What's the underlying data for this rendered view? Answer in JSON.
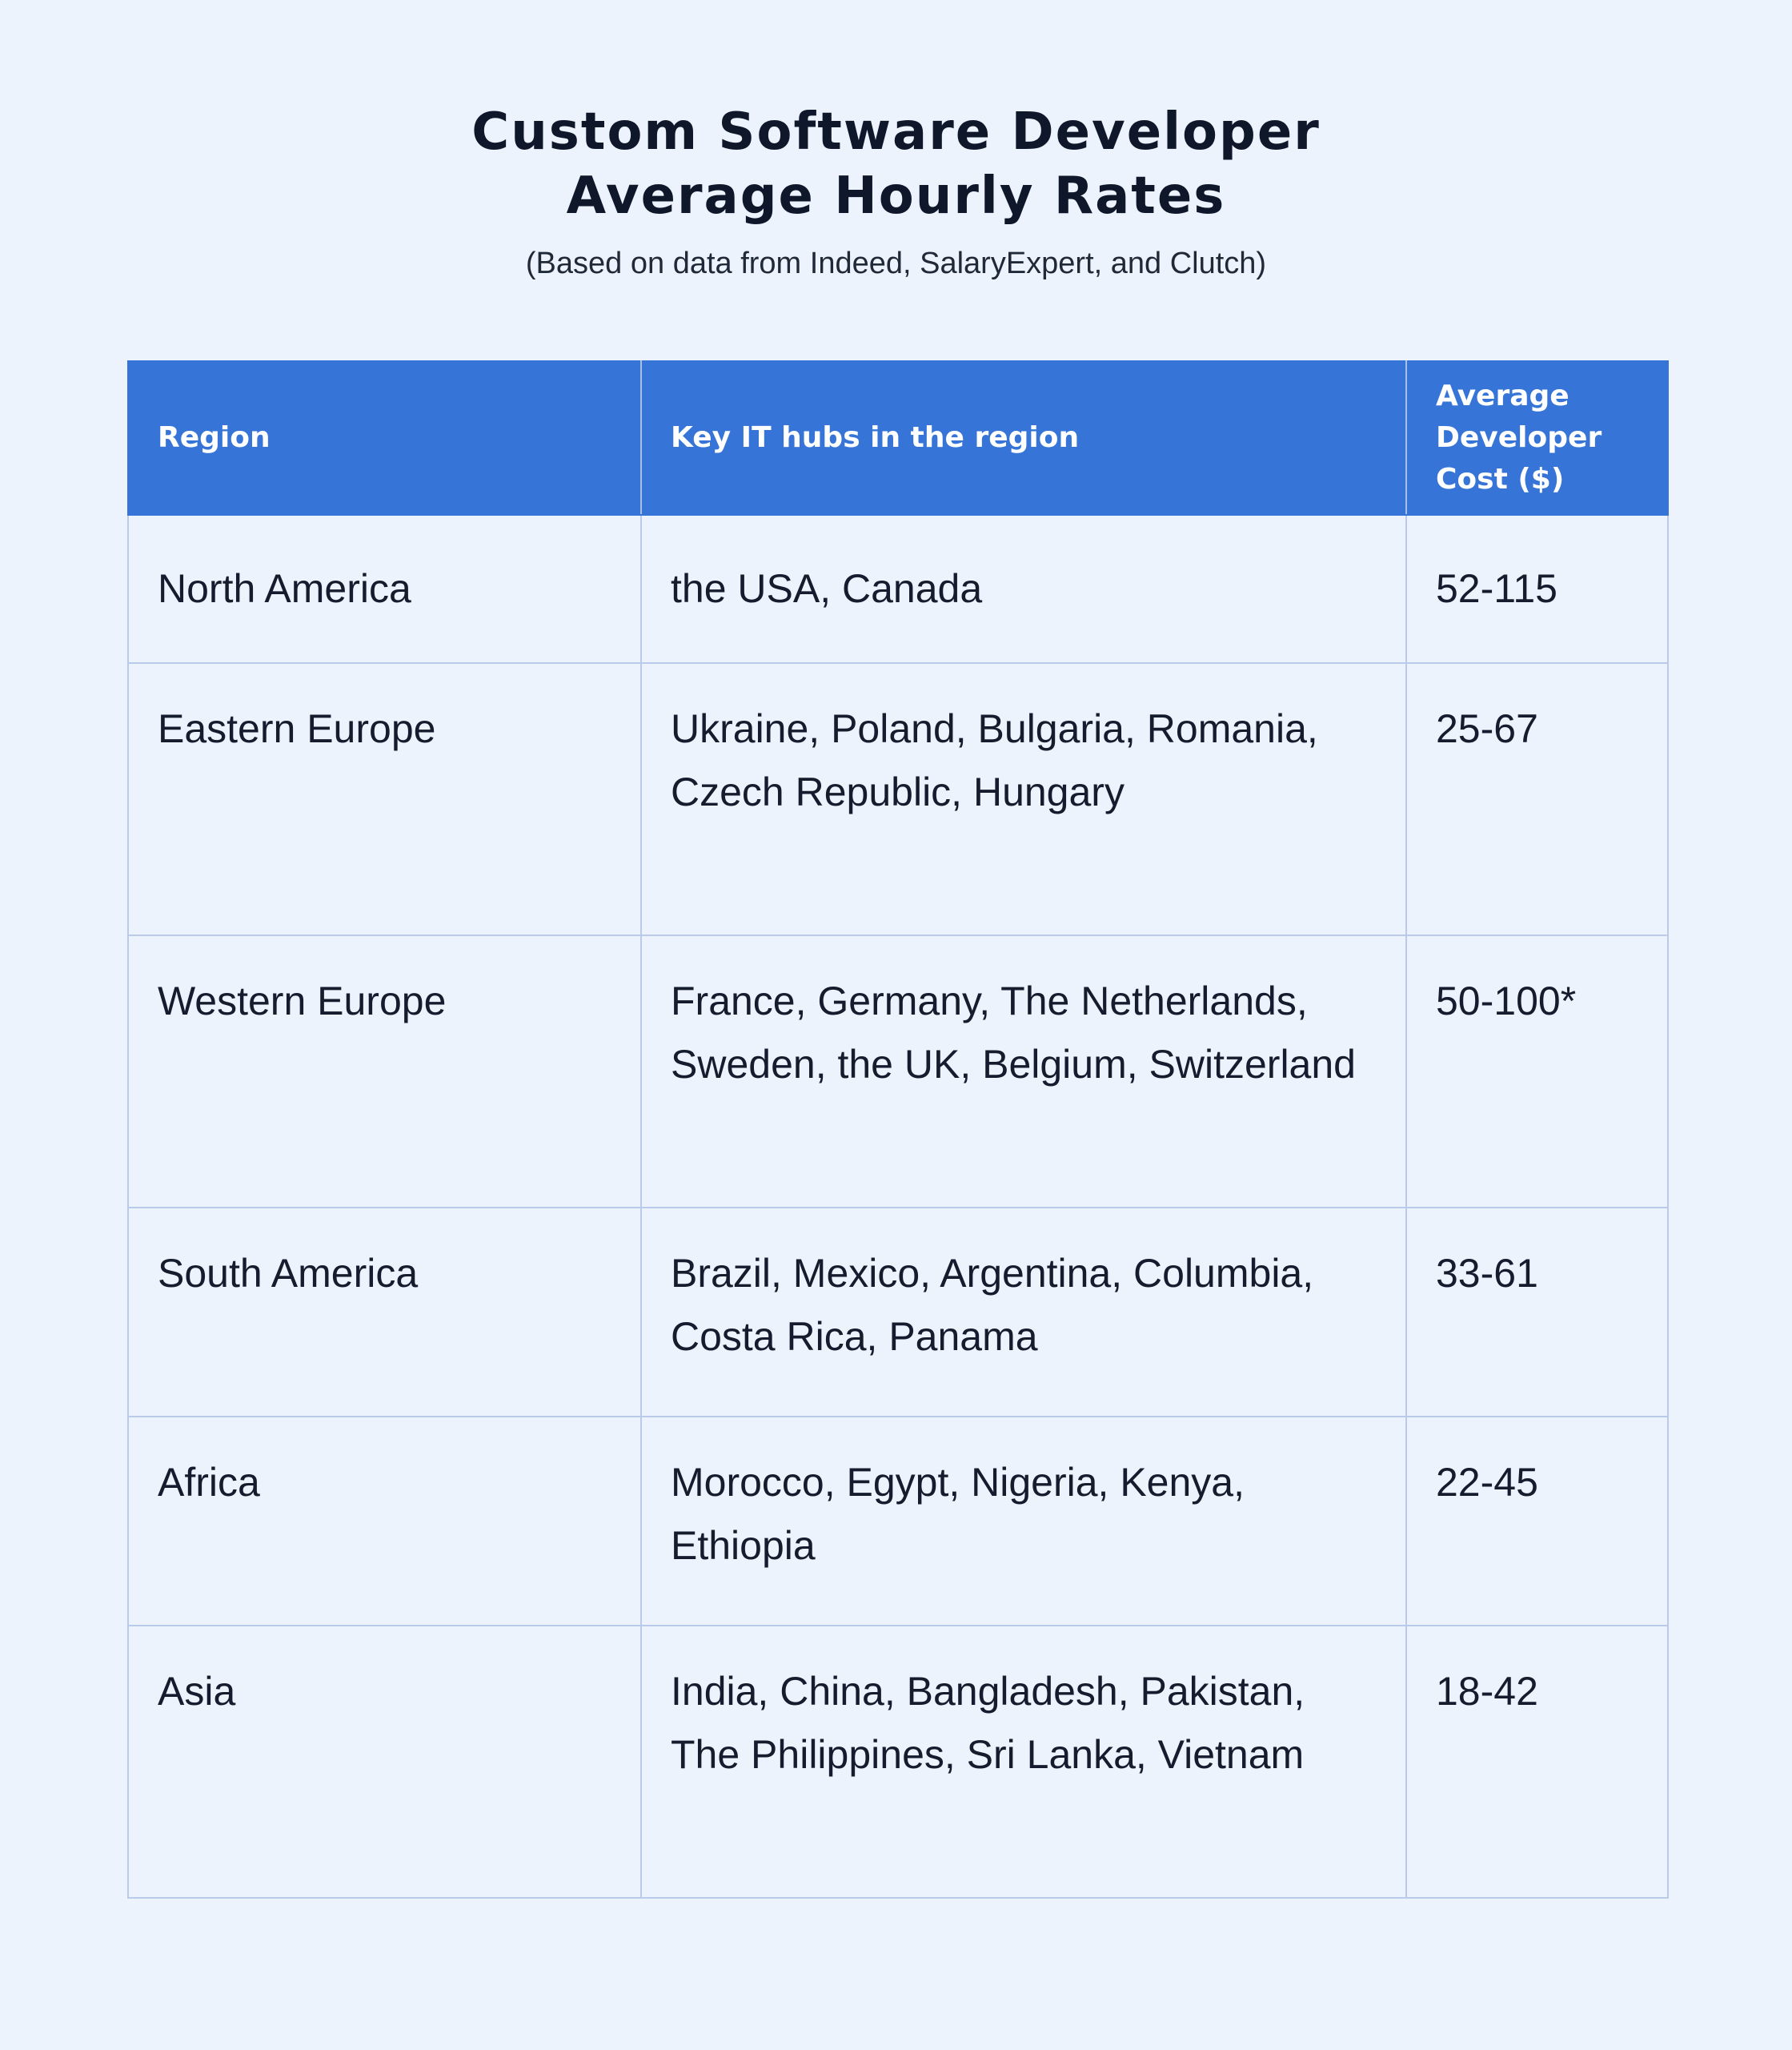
{
  "header": {
    "title_line1": "Custom Software Developer",
    "title_line2": "Average Hourly Rates",
    "subtitle": "(Based on data from Indeed, SalaryExpert, and Clutch)"
  },
  "table": {
    "columns": [
      "Region",
      "Key IT hubs in the region",
      "Average Developer Cost ($)"
    ],
    "rows": [
      {
        "region": "North America",
        "hubs": "the USA, Canada",
        "cost": "52-115"
      },
      {
        "region": "Eastern Europe",
        "hubs": "Ukraine, Poland, Bulgaria, Romania, Czech Republic, Hungary",
        "cost": "25-67"
      },
      {
        "region": "Western Europe",
        "hubs": "France, Germany, The Netherlands, Sweden, the UK, Belgium, Switzerland",
        "cost": "50-100*"
      },
      {
        "region": "South America",
        "hubs": "Brazil, Mexico, Argentina, Columbia, Costa Rica, Panama",
        "cost": "33-61"
      },
      {
        "region": "Africa",
        "hubs": "Morocco, Egypt, Nigeria, Kenya, Ethiopia",
        "cost": "22-45"
      },
      {
        "region": "Asia",
        "hubs": "India, China, Bangladesh, Pakistan, The Philippines, Sri Lanka, Vietnam",
        "cost": "18-42"
      }
    ]
  },
  "colors": {
    "background": "#edf3fc",
    "header_fill": "#3675d7",
    "grid_line": "#b9cbe8",
    "text": "#141c2e"
  }
}
